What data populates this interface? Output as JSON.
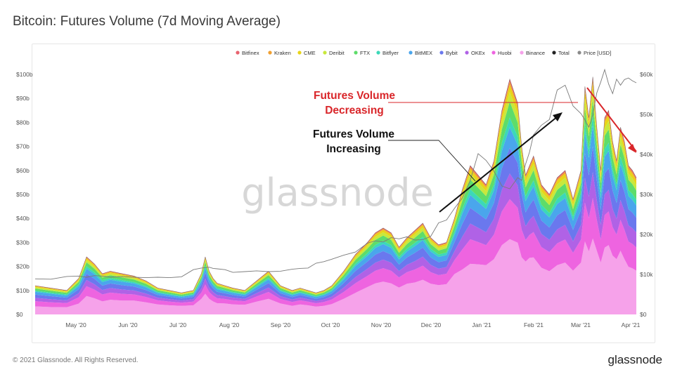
{
  "title": "Bitcoin: Futures Volume (7d Moving Average)",
  "footer": "© 2021 Glassnode. All Rights Reserved.",
  "brand": "glassnode",
  "watermark": "glassnode",
  "chart_data": {
    "type": "area",
    "stacked": true,
    "x_labels": [
      "May '20",
      "Jun '20",
      "Jul '20",
      "Aug '20",
      "Sep '20",
      "Oct '20",
      "Nov '20",
      "Dec '20",
      "Jan '21",
      "Feb '21",
      "Mar '21",
      "Apr '21"
    ],
    "y_left_ticks": [
      "$0",
      "$10b",
      "$20b",
      "$30b",
      "$40b",
      "$50b",
      "$60b",
      "$70b",
      "$80b",
      "$90b",
      "$100b"
    ],
    "y_right_ticks": [
      "$0",
      "$10k",
      "$20k",
      "$30k",
      "$40k",
      "$50k",
      "$60k"
    ],
    "ylim_left": [
      0,
      100
    ],
    "ylim_right": [
      0,
      60
    ],
    "legend": [
      {
        "name": "Bitfinex",
        "color": "#e8636f"
      },
      {
        "name": "Kraken",
        "color": "#f0a030"
      },
      {
        "name": "CME",
        "color": "#e8d418"
      },
      {
        "name": "Deribit",
        "color": "#c8e83c"
      },
      {
        "name": "FTX",
        "color": "#5edc6a"
      },
      {
        "name": "Bitflyer",
        "color": "#3cd8b8"
      },
      {
        "name": "BitMEX",
        "color": "#4aa6ec"
      },
      {
        "name": "Bybit",
        "color": "#6a78ee"
      },
      {
        "name": "OKEx",
        "color": "#b062e6"
      },
      {
        "name": "Huobi",
        "color": "#ee64e0"
      },
      {
        "name": "Binance",
        "color": "#f6a2ea"
      },
      {
        "name": "Total",
        "color": "#222222"
      },
      {
        "name": "Price [USD]",
        "color": "#8a8a8a"
      }
    ],
    "legend_placement": "top-right",
    "grid": false,
    "x": [
      0,
      8,
      16,
      22,
      26,
      30,
      34,
      38,
      44,
      50,
      56,
      62,
      68,
      74,
      80,
      84,
      86,
      88,
      90,
      92,
      96,
      100,
      106,
      112,
      118,
      124,
      130,
      134,
      138,
      142,
      146,
      150,
      156,
      162,
      168,
      172,
      176,
      180,
      184,
      188,
      192,
      196,
      200,
      204,
      208,
      212,
      216,
      220,
      224,
      228,
      232,
      236,
      240,
      244,
      246,
      248,
      250,
      252,
      256,
      260,
      264,
      268,
      272,
      276,
      278,
      280,
      282,
      284,
      286,
      288,
      290,
      292,
      294,
      296,
      298,
      300,
      302,
      304
    ],
    "total": [
      12,
      11,
      10,
      15,
      24,
      21,
      17,
      18,
      17,
      16,
      14,
      11,
      10,
      9,
      10,
      17,
      24,
      18,
      15,
      13,
      12,
      11,
      10,
      14,
      18,
      12,
      10,
      11,
      10,
      9,
      10,
      12,
      18,
      25,
      30,
      34,
      36,
      34,
      28,
      32,
      35,
      38,
      32,
      29,
      30,
      40,
      52,
      62,
      58,
      54,
      64,
      85,
      98,
      88,
      70,
      58,
      62,
      66,
      54,
      50,
      57,
      60,
      48,
      60,
      95,
      82,
      99,
      78,
      60,
      82,
      85,
      72,
      64,
      78,
      72,
      62,
      60,
      57
    ],
    "price": [
      8.9,
      8.8,
      9.5,
      9.6,
      9.3,
      9.7,
      9.6,
      9.3,
      9.5,
      9.3,
      9.2,
      9.3,
      9.2,
      9.4,
      11.2,
      11.6,
      11.7,
      11.8,
      11.5,
      11.4,
      11.2,
      10.5,
      10.7,
      10.9,
      10.7,
      10.8,
      11.3,
      11.5,
      11.6,
      12.8,
      13.2,
      13.8,
      14.8,
      15.6,
      17.8,
      18.4,
      18.1,
      19.2,
      18.9,
      19.4,
      18.6,
      18.7,
      19.5,
      22.9,
      23.6,
      26.5,
      29.1,
      33.5,
      40.2,
      38.5,
      35.8,
      32.1,
      31.4,
      34.2,
      33.5,
      37.6,
      40.6,
      44.9,
      47.3,
      48.7,
      56.1,
      57.3,
      52.1,
      50.2,
      48.6,
      46.8,
      49.9,
      55.4,
      58.1,
      61.2,
      57.6,
      55.2,
      58.8,
      57.3,
      58.7,
      59.1,
      58.4,
      57.9
    ],
    "share_binance": [
      0.28,
      0.28,
      0.3,
      0.3,
      0.32,
      0.32,
      0.32,
      0.34,
      0.34,
      0.36,
      0.36,
      0.38,
      0.38,
      0.4,
      0.38,
      0.38,
      0.36,
      0.36,
      0.36,
      0.36,
      0.38,
      0.38,
      0.4,
      0.38,
      0.36,
      0.38,
      0.36,
      0.38,
      0.38,
      0.36,
      0.36,
      0.36,
      0.36,
      0.36,
      0.38,
      0.38,
      0.38,
      0.38,
      0.4,
      0.4,
      0.38,
      0.38,
      0.4,
      0.42,
      0.42,
      0.42,
      0.36,
      0.34,
      0.36,
      0.38,
      0.36,
      0.34,
      0.32,
      0.34,
      0.34,
      0.38,
      0.38,
      0.36,
      0.36,
      0.36,
      0.36,
      0.36,
      0.38,
      0.36,
      0.32,
      0.32,
      0.32,
      0.34,
      0.36,
      0.34,
      0.34,
      0.34,
      0.36,
      0.34,
      0.32,
      0.32,
      0.32,
      0.32
    ],
    "annotations": [
      {
        "text_line1": "Futures Volume",
        "text_line2": "Decreasing",
        "color": "#d9262a"
      },
      {
        "text_line1": "Futures Volume",
        "text_line2": "Increasing",
        "color": "#111111"
      }
    ]
  }
}
